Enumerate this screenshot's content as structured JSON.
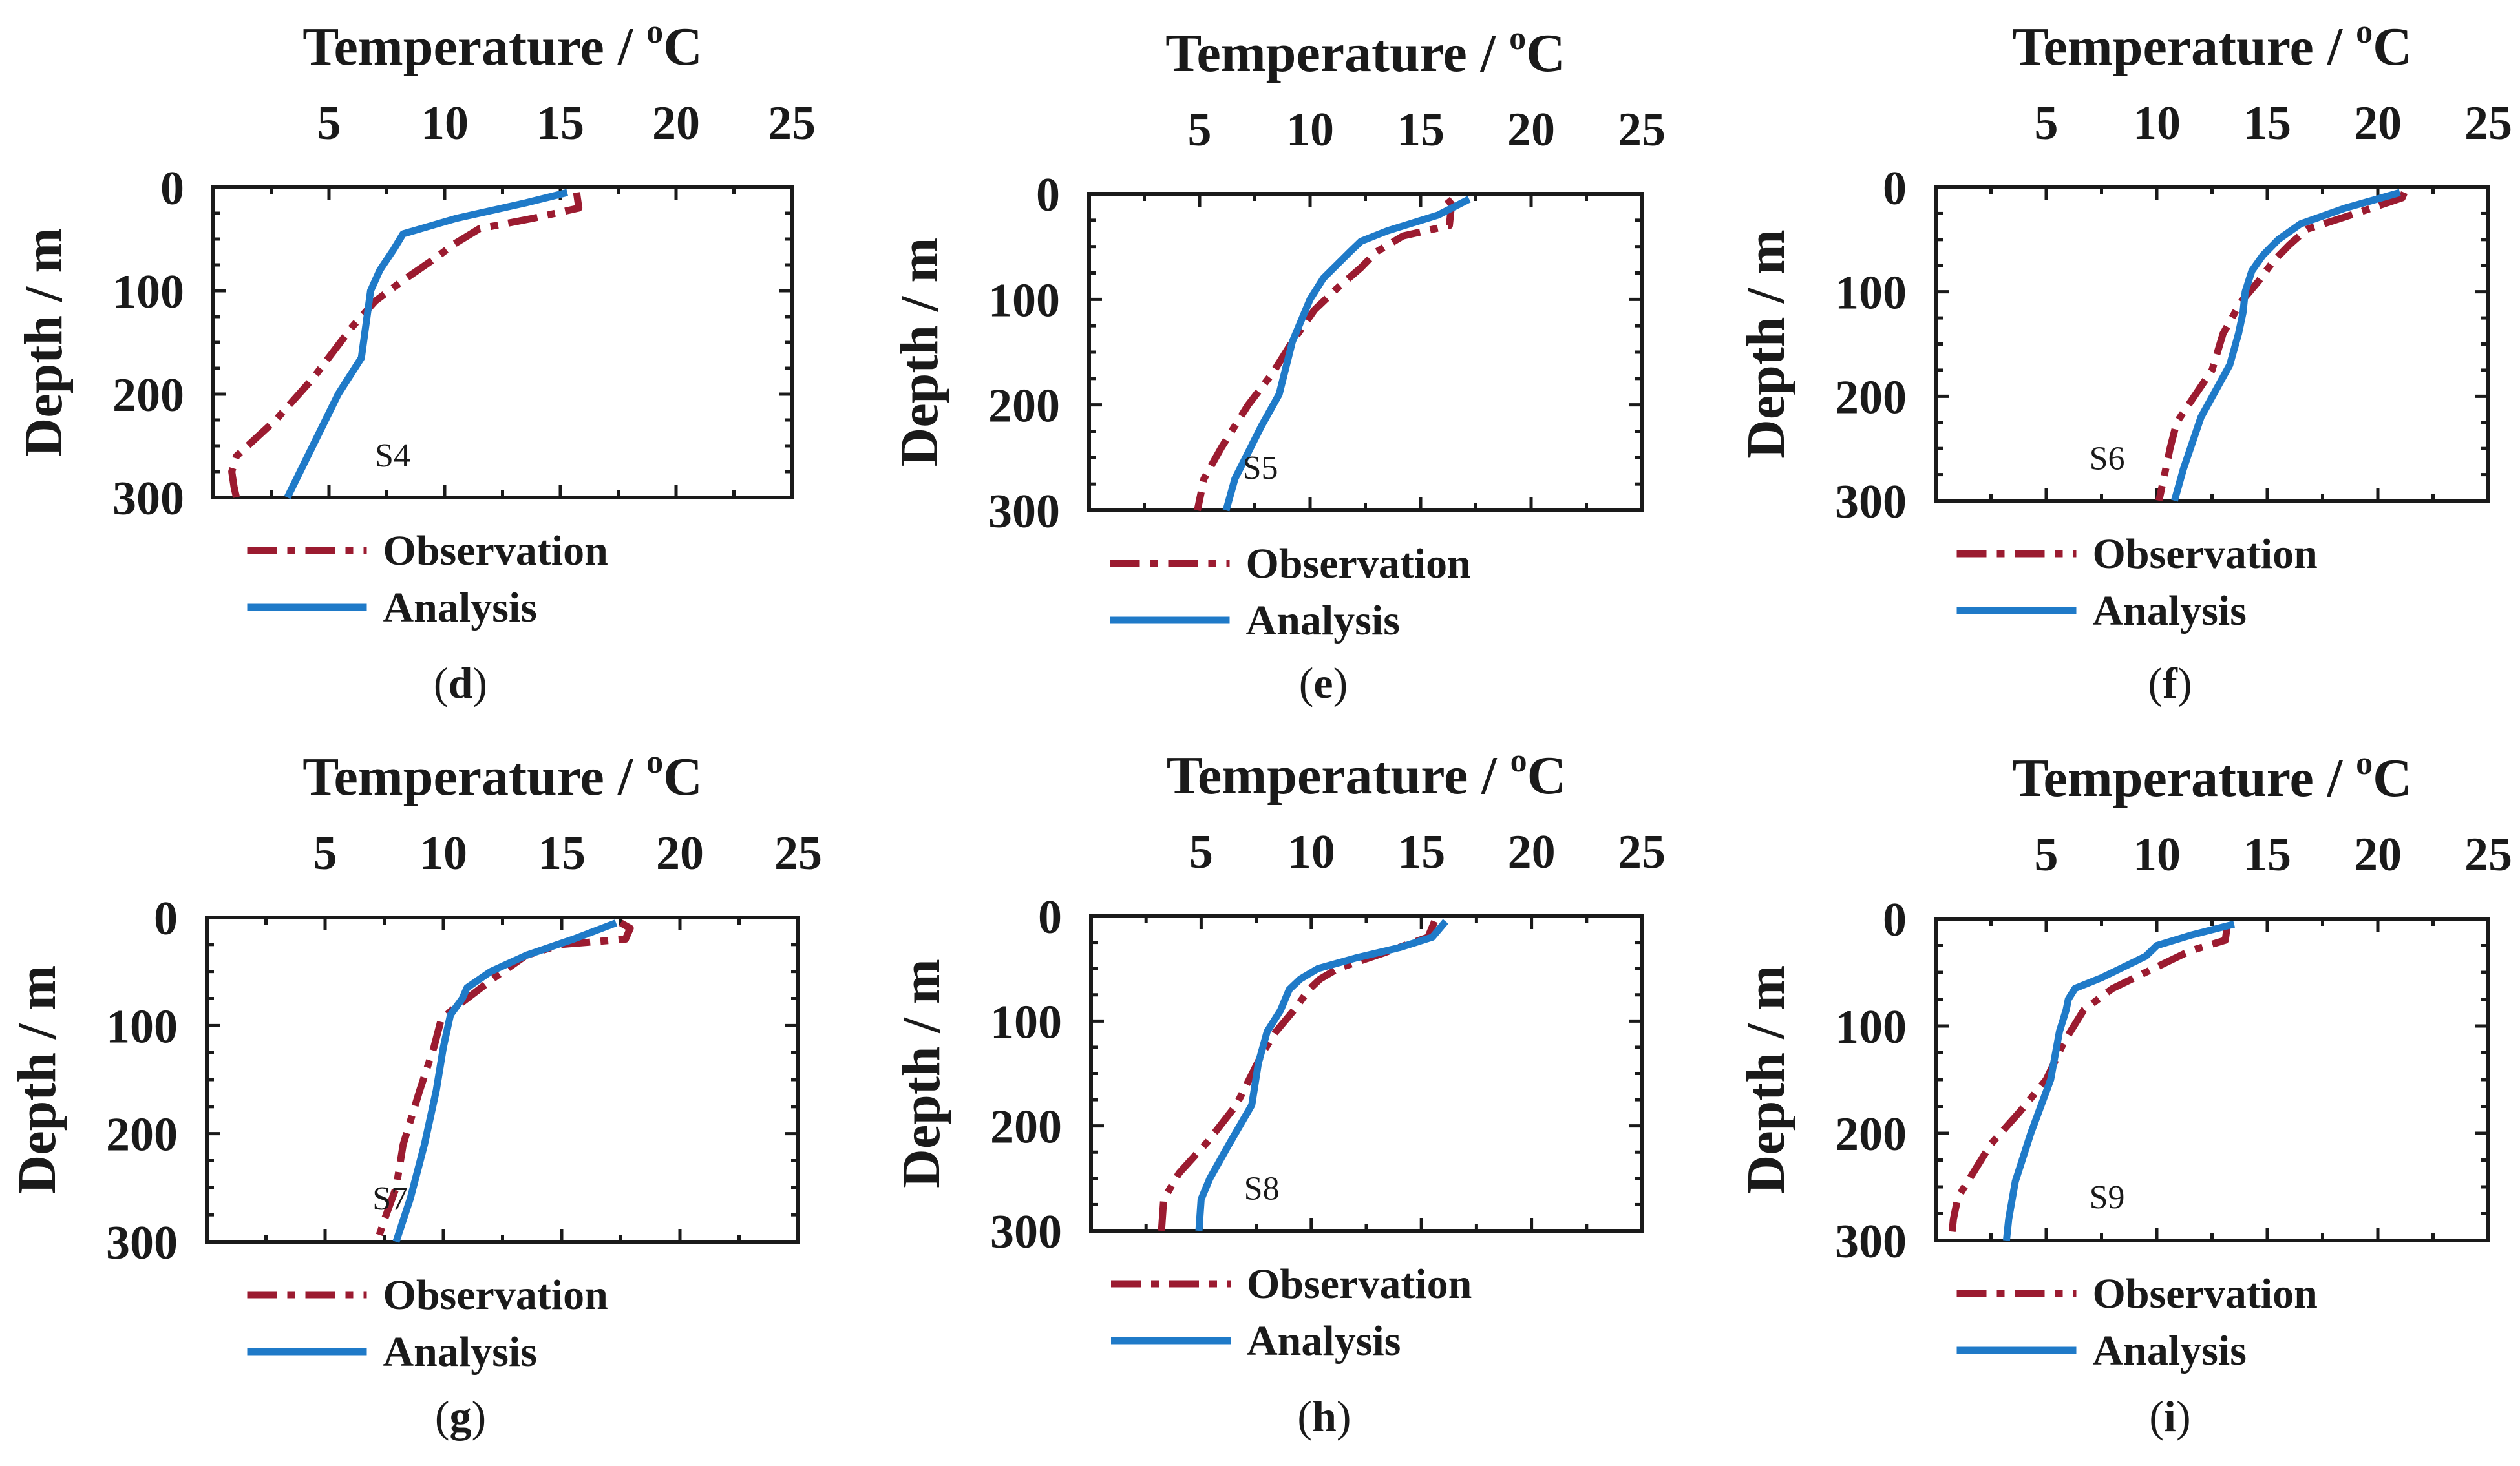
{
  "colors": {
    "observation": "#9b1b30",
    "analysis": "#1f7ac8",
    "axis": "#1a1a1a",
    "background": "#ffffff"
  },
  "chart_data": [
    {
      "type": "line",
      "panel_label": "d",
      "station": "S4",
      "xlabel_text": "Temperature / ",
      "xlabel_sup": "o",
      "xlabel_unit": "C",
      "ylabel": "Depth / m",
      "xlim": [
        0,
        25
      ],
      "ylim": [
        300,
        0
      ],
      "xticks": [
        5,
        10,
        15,
        20,
        25
      ],
      "yticks": [
        0,
        100,
        200,
        300
      ],
      "legend": [
        "Observation",
        "Analysis"
      ],
      "series": [
        {
          "name": "Observation",
          "style": "dashdot",
          "x": [
            15.7,
            15.8,
            13.8,
            11.5,
            10.4,
            9.5,
            8.2,
            7.0,
            6.0,
            4.3,
            2.7,
            1.0,
            0.8,
            0.9,
            1.0
          ],
          "y": [
            5,
            20,
            30,
            40,
            55,
            70,
            90,
            110,
            135,
            185,
            225,
            260,
            275,
            290,
            300
          ]
        },
        {
          "name": "Analysis",
          "style": "solid",
          "x": [
            15.3,
            13.5,
            10.5,
            8.2,
            7.8,
            7.2,
            6.8,
            6.4,
            5.4,
            3.2
          ],
          "y": [
            5,
            15,
            30,
            45,
            60,
            80,
            100,
            165,
            200,
            300
          ]
        }
      ]
    },
    {
      "type": "line",
      "panel_label": "e",
      "station": "S5",
      "xlabel_text": "Temperature / ",
      "xlabel_sup": "o",
      "xlabel_unit": "C",
      "ylabel": "Depth / m",
      "xlim": [
        0,
        25
      ],
      "ylim": [
        300,
        0
      ],
      "xticks": [
        5,
        10,
        15,
        20,
        25
      ],
      "yticks": [
        0,
        100,
        200,
        300
      ],
      "legend": [
        "Observation",
        "Analysis"
      ],
      "series": [
        {
          "name": "Observation",
          "style": "dashdot",
          "x": [
            16.2,
            16.4,
            16.3,
            14.2,
            13.0,
            12.3,
            11.2,
            10.2,
            9.2,
            8.3,
            7.2,
            6.0,
            5.2,
            5.0,
            4.9
          ],
          "y": [
            5,
            10,
            30,
            40,
            55,
            70,
            90,
            110,
            140,
            170,
            200,
            240,
            270,
            290,
            300
          ]
        },
        {
          "name": "Analysis",
          "style": "solid",
          "x": [
            17.2,
            15.8,
            13.5,
            12.3,
            11.8,
            10.6,
            10.0,
            9.2,
            8.6,
            7.8,
            6.6,
            6.2
          ],
          "y": [
            5,
            20,
            35,
            45,
            55,
            80,
            100,
            140,
            190,
            220,
            270,
            300
          ]
        }
      ]
    },
    {
      "type": "line",
      "panel_label": "f",
      "station": "S6",
      "xlabel_text": "Temperature / ",
      "xlabel_sup": "o",
      "xlabel_unit": "C",
      "ylabel": "Depth / m",
      "xlim": [
        0,
        25
      ],
      "ylim": [
        300,
        0
      ],
      "xticks": [
        5,
        10,
        15,
        20,
        25
      ],
      "yticks": [
        0,
        100,
        200,
        300
      ],
      "legend": [
        "Observation",
        "Analysis"
      ],
      "series": [
        {
          "name": "Observation",
          "style": "dashdot",
          "x": [
            21.2,
            21.1,
            19.0,
            16.8,
            16.0,
            15.3,
            14.6,
            13.8,
            13.0,
            12.5,
            11.7,
            10.9,
            10.6,
            10.3,
            10.1
          ],
          "y": [
            5,
            10,
            25,
            40,
            55,
            70,
            90,
            110,
            140,
            175,
            200,
            225,
            250,
            280,
            300
          ]
        },
        {
          "name": "Analysis",
          "style": "solid",
          "x": [
            21.0,
            18.5,
            16.5,
            15.5,
            14.8,
            14.3,
            14.0,
            13.9,
            13.7,
            13.3,
            12.0,
            11.2,
            10.8
          ],
          "y": [
            5,
            20,
            35,
            50,
            65,
            80,
            100,
            120,
            140,
            170,
            220,
            270,
            300
          ]
        }
      ]
    },
    {
      "type": "line",
      "panel_label": "g",
      "station": "S7",
      "xlabel_text": "Temperature / ",
      "xlabel_sup": "o",
      "xlabel_unit": "C",
      "ylabel": "Depth / m",
      "xlim": [
        0,
        25
      ],
      "ylim": [
        300,
        0
      ],
      "xticks": [
        5,
        10,
        15,
        20,
        25
      ],
      "yticks": [
        0,
        100,
        200,
        300
      ],
      "legend": [
        "Observation",
        "Analysis"
      ],
      "series": [
        {
          "name": "Observation",
          "style": "dashdot",
          "x": [
            17.5,
            17.9,
            17.7,
            15.0,
            13.5,
            12.2,
            11.0,
            10.4,
            9.9,
            9.6,
            9.0,
            8.3,
            8.0,
            7.5,
            7.2
          ],
          "y": [
            5,
            10,
            20,
            25,
            35,
            55,
            75,
            85,
            95,
            120,
            160,
            210,
            250,
            280,
            300
          ]
        },
        {
          "name": "Analysis",
          "style": "solid",
          "x": [
            17.3,
            15.5,
            13.5,
            12.0,
            11.0,
            10.8,
            10.3,
            10.2,
            10.0,
            9.7,
            9.2,
            8.6,
            8.0
          ],
          "y": [
            5,
            20,
            35,
            50,
            65,
            75,
            90,
            100,
            120,
            160,
            210,
            260,
            300
          ]
        }
      ]
    },
    {
      "type": "line",
      "panel_label": "h",
      "station": "S8",
      "xlabel_text": "Temperature / ",
      "xlabel_sup": "o",
      "xlabel_unit": "C",
      "ylabel": "Depth / m",
      "xlim": [
        0,
        25
      ],
      "ylim": [
        300,
        0
      ],
      "xticks": [
        5,
        10,
        15,
        20,
        25
      ],
      "yticks": [
        0,
        100,
        200,
        300
      ],
      "legend": [
        "Observation",
        "Analysis"
      ],
      "series": [
        {
          "name": "Observation",
          "style": "dashdot",
          "x": [
            15.6,
            15.3,
            13.3,
            11.2,
            10.4,
            9.9,
            9.2,
            8.4,
            7.8,
            7.2,
            6.6,
            5.3,
            4.0,
            3.3,
            3.2
          ],
          "y": [
            5,
            20,
            35,
            50,
            60,
            70,
            90,
            110,
            130,
            155,
            180,
            215,
            245,
            270,
            300
          ]
        },
        {
          "name": "Analysis",
          "style": "solid",
          "x": [
            16.1,
            15.5,
            14.0,
            12.0,
            10.3,
            9.5,
            9.0,
            8.6,
            8.0,
            7.6,
            7.3,
            6.2,
            5.4,
            5.0,
            4.9
          ],
          "y": [
            5,
            20,
            30,
            40,
            50,
            60,
            70,
            90,
            110,
            140,
            180,
            220,
            250,
            270,
            300
          ]
        }
      ]
    },
    {
      "type": "line",
      "panel_label": "i",
      "station": "S9",
      "xlabel_text": "Temperature / ",
      "xlabel_sup": "o",
      "xlabel_unit": "C",
      "ylabel": "Depth / m",
      "xlim": [
        0,
        25
      ],
      "ylim": [
        300,
        0
      ],
      "xticks": [
        5,
        10,
        15,
        20,
        25
      ],
      "yticks": [
        0,
        100,
        200,
        300
      ],
      "legend": [
        "Observation",
        "Analysis"
      ],
      "series": [
        {
          "name": "Observation",
          "style": "dashdot",
          "x": [
            13.2,
            13.1,
            11.5,
            10.0,
            8.0,
            6.7,
            5.8,
            5.0,
            3.8,
            2.5,
            1.0,
            0.8,
            0.7
          ],
          "y": [
            5,
            20,
            30,
            45,
            65,
            85,
            115,
            150,
            180,
            210,
            260,
            280,
            300
          ]
        },
        {
          "name": "Analysis",
          "style": "solid",
          "x": [
            13.5,
            11.6,
            10.0,
            9.5,
            7.5,
            6.3,
            6.0,
            5.9,
            5.6,
            5.2,
            4.3,
            3.6,
            3.3,
            3.2
          ],
          "y": [
            5,
            15,
            25,
            35,
            55,
            65,
            75,
            85,
            105,
            150,
            200,
            245,
            280,
            300
          ]
        }
      ]
    }
  ]
}
